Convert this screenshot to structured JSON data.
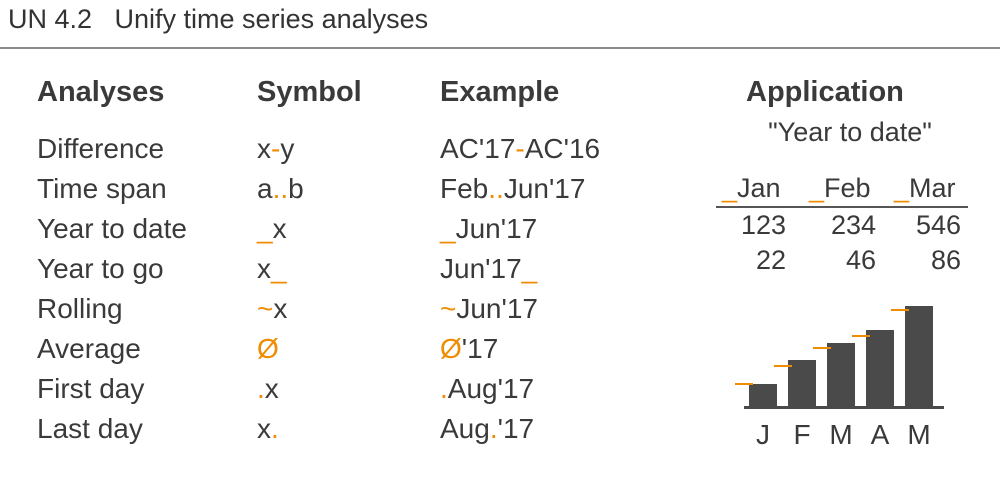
{
  "header": {
    "title": "UN 4.2   Unify time series analyses"
  },
  "table": {
    "headers": {
      "analyses": "Analyses",
      "symbol": "Symbol",
      "example": "Example"
    },
    "rows": [
      {
        "analysis": "Difference",
        "symbol": {
          "pre": "x",
          "mark": "-",
          "post": "y"
        },
        "example": {
          "pre": "AC'17",
          "mark": "-",
          "post": "AC'16"
        }
      },
      {
        "analysis": "Time span",
        "symbol": {
          "pre": "a",
          "mark": "..",
          "post": "b"
        },
        "example": {
          "pre": "Feb",
          "mark": "..",
          "post": "Jun'17"
        }
      },
      {
        "analysis": "Year to date",
        "symbol": {
          "pre": "",
          "mark": "_",
          "post": "x"
        },
        "example": {
          "pre": "",
          "mark": "_",
          "post": "Jun'17"
        }
      },
      {
        "analysis": "Year to go",
        "symbol": {
          "pre": "x",
          "mark": "_",
          "post": ""
        },
        "example": {
          "pre": "Jun'17",
          "mark": "_",
          "post": ""
        }
      },
      {
        "analysis": "Rolling",
        "symbol": {
          "pre": "",
          "mark": "~",
          "post": "x"
        },
        "example": {
          "pre": "",
          "mark": "~",
          "post": "Jun'17"
        }
      },
      {
        "analysis": "Average",
        "symbol": {
          "pre": "",
          "mark": "Ø",
          "post": ""
        },
        "example": {
          "pre": "",
          "mark": "Ø",
          "post": "'17"
        }
      },
      {
        "analysis": "First day",
        "symbol": {
          "pre": "",
          "mark": ".",
          "post": "x"
        },
        "example": {
          "pre": "",
          "mark": ".",
          "post": "Aug'17"
        }
      },
      {
        "analysis": "Last day",
        "symbol": {
          "pre": "x",
          "mark": ".",
          "post": ""
        },
        "example": {
          "pre": "Aug",
          "mark": ".",
          "post": "'17"
        }
      }
    ]
  },
  "application": {
    "title": "Application",
    "subtitle": "\"Year to date\"",
    "columns": [
      "Jan",
      "Feb",
      "Mar"
    ],
    "column_mark": "_",
    "rows": [
      [
        "123",
        "234",
        "546"
      ],
      [
        "22",
        "46",
        "86"
      ]
    ]
  },
  "chart_data": {
    "type": "bar",
    "categories": [
      "J",
      "F",
      "M",
      "A",
      "M"
    ],
    "values": [
      22,
      46,
      63,
      76,
      100
    ],
    "previous_markers": [
      22,
      40,
      58,
      70,
      96
    ],
    "colors": {
      "bar": "#4a4a4a",
      "marker": "#ef8c00",
      "axis": "#4a4a4a"
    },
    "xlabel": "",
    "ylabel": "",
    "ylim": [
      0,
      100
    ]
  },
  "colors": {
    "accent": "#ef8c00",
    "text": "#3a3a3a",
    "rule": "#8a8a8a"
  }
}
